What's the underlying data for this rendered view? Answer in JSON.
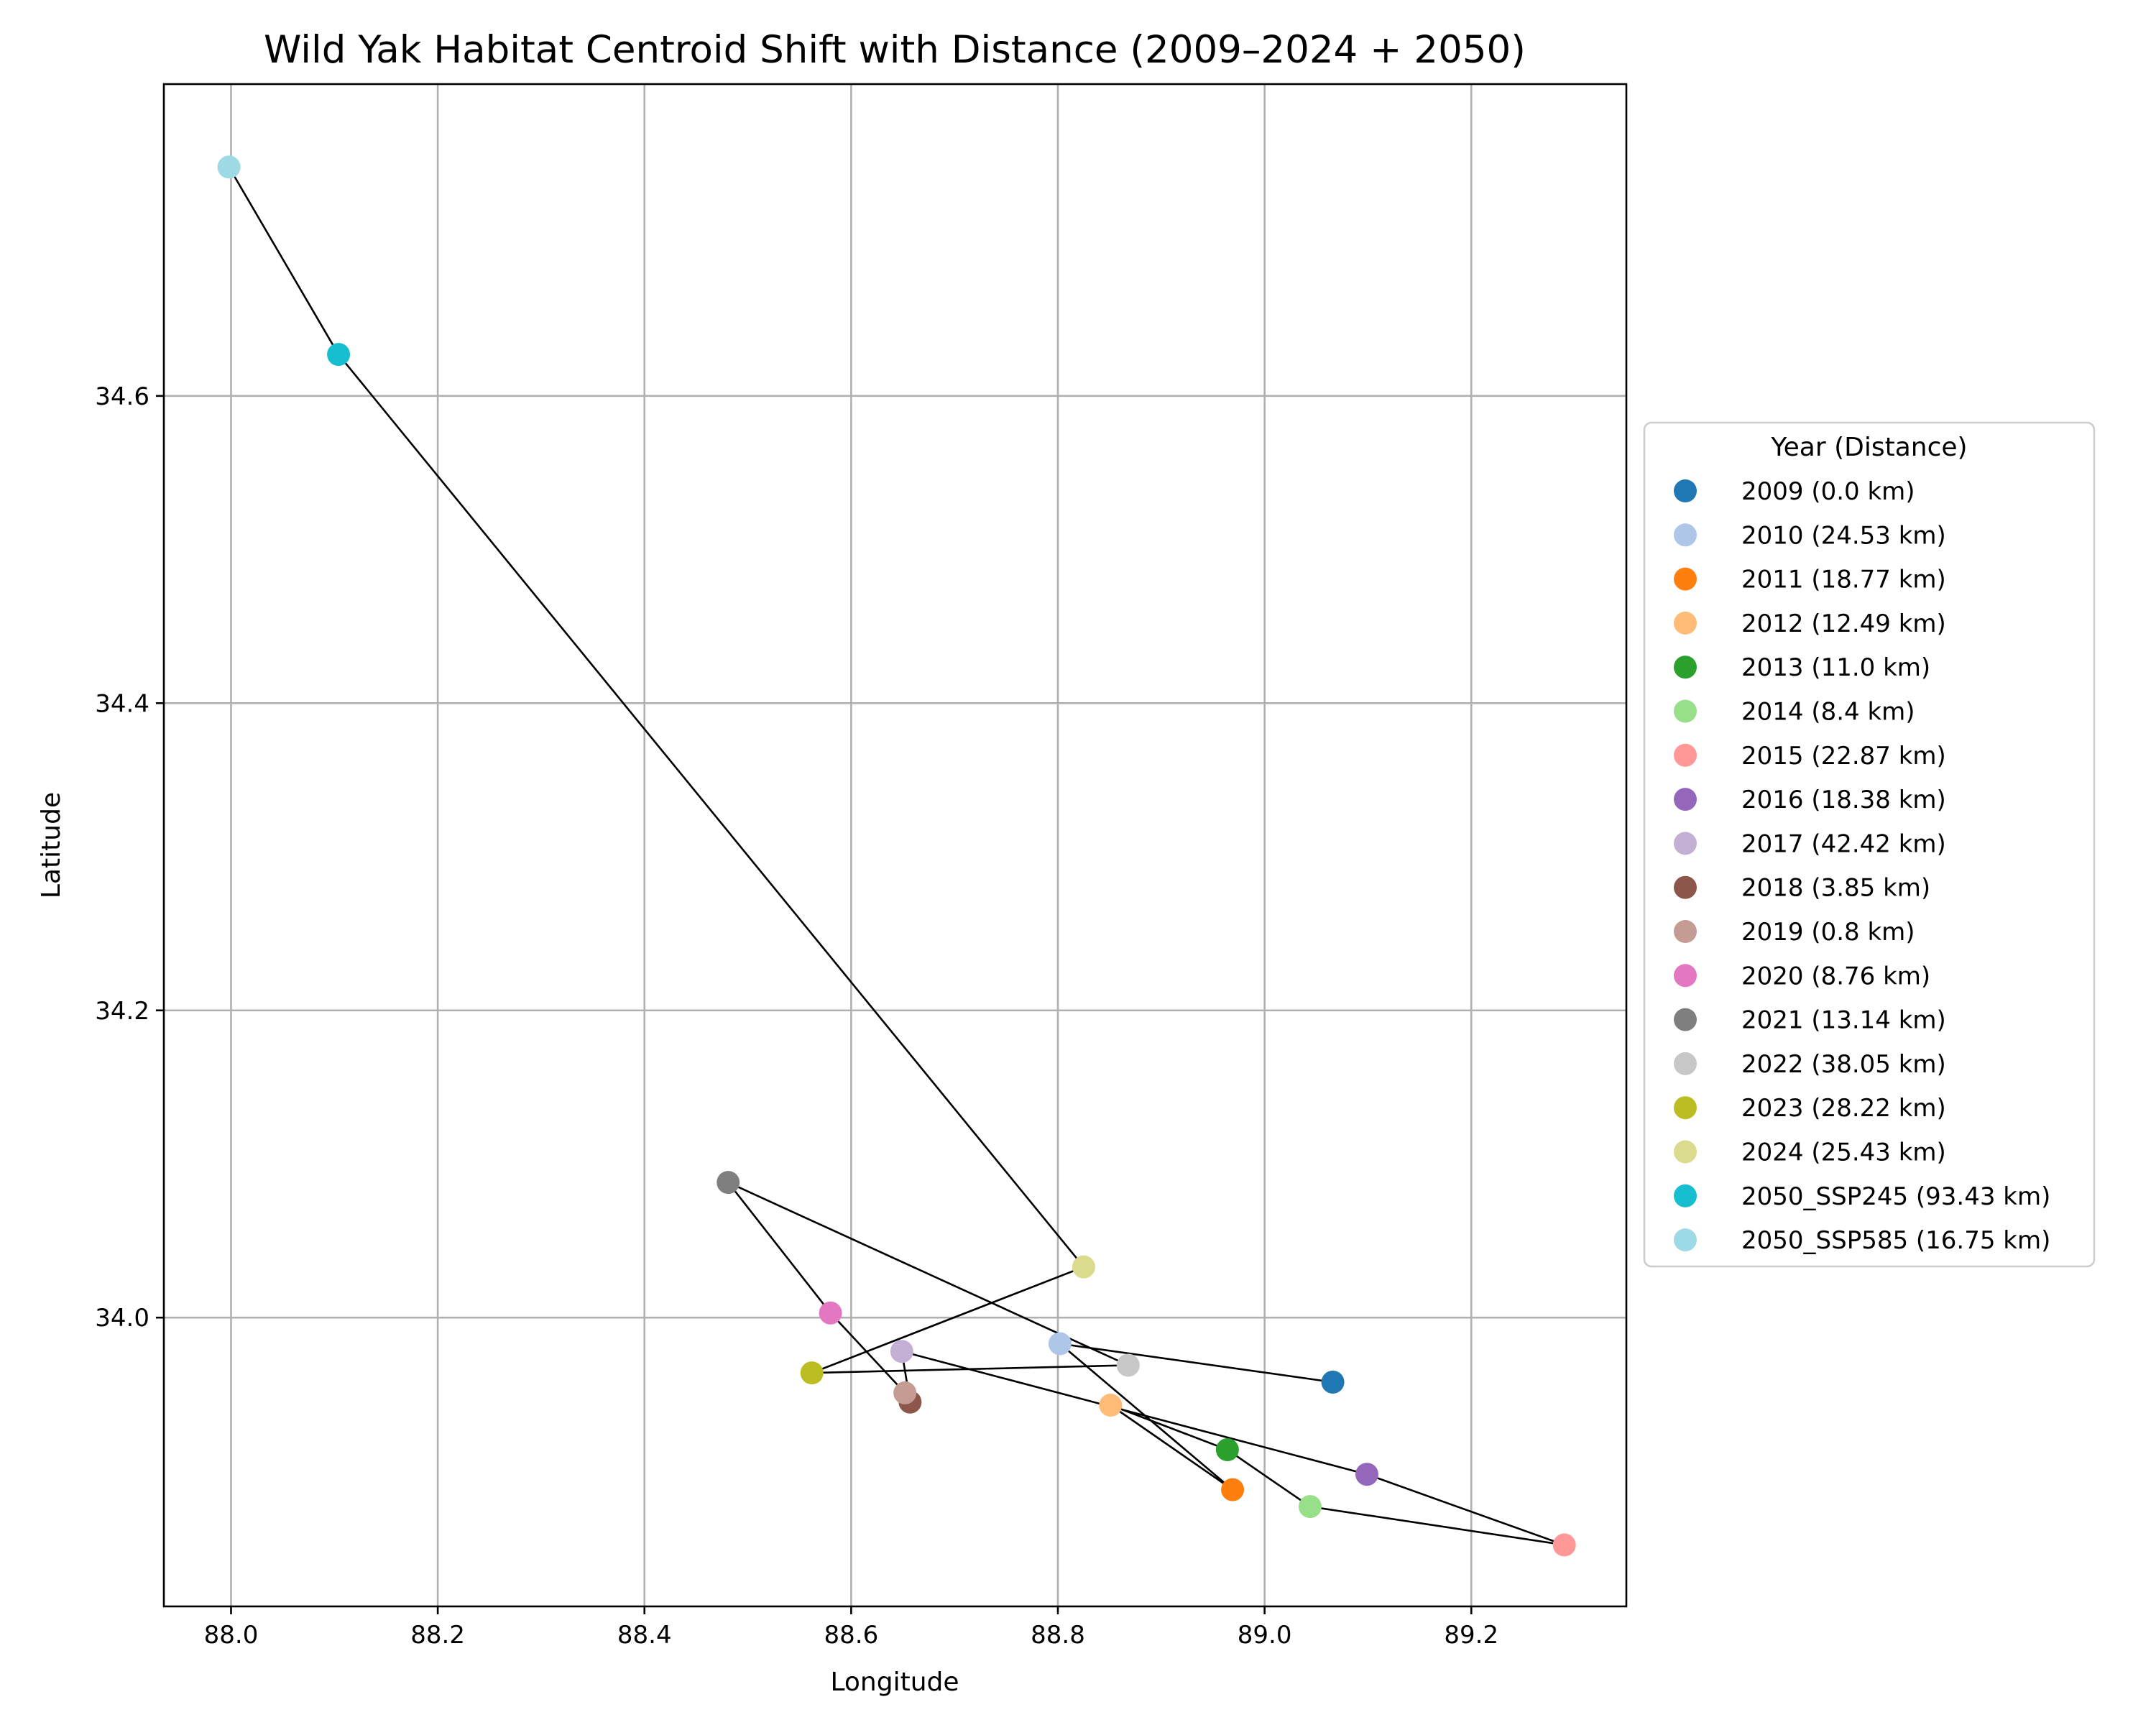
{
  "chart_data": {
    "type": "scatter",
    "title": "Wild Yak Habitat Centroid Shift with Distance (2009–2024 + 2050)",
    "xlabel": "Longitude",
    "ylabel": "Latitude",
    "xlim": [
      87.935,
      89.35
    ],
    "ylim": [
      33.812,
      34.803
    ],
    "xticks": [
      88.0,
      88.2,
      88.4,
      88.6,
      88.8,
      89.0,
      89.2
    ],
    "xtick_labels": [
      "88.0",
      "88.2",
      "88.4",
      "88.6",
      "88.8",
      "89.0",
      "89.2"
    ],
    "yticks": [
      34.0,
      34.2,
      34.4,
      34.6
    ],
    "ytick_labels": [
      "34.0",
      "34.2",
      "34.4",
      "34.6"
    ],
    "grid": true,
    "connecting_line": true,
    "line_color": "#000000",
    "legend": {
      "title": "Year (Distance)",
      "placement": "outside-right"
    },
    "points": [
      {
        "label": "2009 (0.0 km)",
        "x": 89.066,
        "y": 33.958,
        "color": "#1f77b4"
      },
      {
        "label": "2010 (24.53 km)",
        "x": 88.802,
        "y": 33.983,
        "color": "#aec7e8"
      },
      {
        "label": "2011 (18.77 km)",
        "x": 88.969,
        "y": 33.888,
        "color": "#ff7f0e"
      },
      {
        "label": "2012 (12.49 km)",
        "x": 88.851,
        "y": 33.943,
        "color": "#ffbb78"
      },
      {
        "label": "2013 (11.0 km)",
        "x": 88.964,
        "y": 33.914,
        "color": "#2ca02c"
      },
      {
        "label": "2014 (8.4 km)",
        "x": 89.044,
        "y": 33.877,
        "color": "#98df8a"
      },
      {
        "label": "2015 (22.87 km)",
        "x": 89.29,
        "y": 33.852,
        "color": "#ff9896"
      },
      {
        "label": "2016 (18.38 km)",
        "x": 89.099,
        "y": 33.898,
        "color": "#9467bd"
      },
      {
        "label": "2017 (42.42 km)",
        "x": 88.649,
        "y": 33.978,
        "color": "#c5b0d5"
      },
      {
        "label": "2018 (3.85 km)",
        "x": 88.657,
        "y": 33.945,
        "color": "#8c564b"
      },
      {
        "label": "2019 (0.8 km)",
        "x": 88.652,
        "y": 33.951,
        "color": "#c49c94"
      },
      {
        "label": "2020 (8.76 km)",
        "x": 88.58,
        "y": 34.003,
        "color": "#e377c2"
      },
      {
        "label": "2021 (13.14 km)",
        "x": 88.481,
        "y": 34.088,
        "color": "#7f7f7f"
      },
      {
        "label": "2022 (38.05 km)",
        "x": 88.868,
        "y": 33.969,
        "color": "#c7c7c7"
      },
      {
        "label": "2023 (28.22 km)",
        "x": 88.562,
        "y": 33.964,
        "color": "#bcbd22"
      },
      {
        "label": "2024 (25.43 km)",
        "x": 88.825,
        "y": 34.033,
        "color": "#dbdb8d"
      },
      {
        "label": "2050_SSP245 (93.43 km)",
        "x": 88.104,
        "y": 34.627,
        "color": "#17becf"
      },
      {
        "label": "2050_SSP585 (16.75 km)",
        "x": 87.998,
        "y": 34.749,
        "color": "#9edae5"
      }
    ]
  }
}
